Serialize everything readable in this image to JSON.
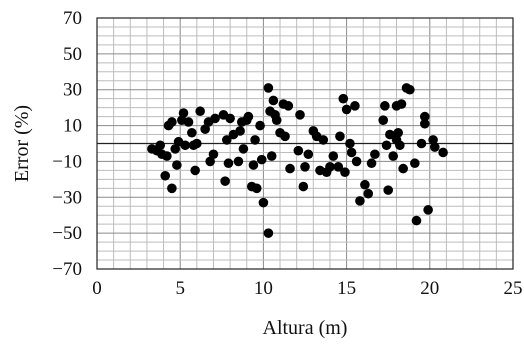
{
  "chart_data": {
    "type": "scatter",
    "xlabel": "Altura (m)",
    "ylabel": "Error (%)",
    "xlim": [
      0,
      25
    ],
    "ylim": [
      -70,
      70
    ],
    "xticks": [
      0,
      5,
      10,
      15,
      20,
      25
    ],
    "yticks": [
      -70,
      -50,
      -30,
      -10,
      10,
      30,
      50,
      70
    ],
    "grid": true,
    "reference_line_y": 0,
    "marker_color": "#000000",
    "series": [
      {
        "points": [
          [
            3.3,
            -3
          ],
          [
            3.6,
            -4
          ],
          [
            3.8,
            -1
          ],
          [
            3.9,
            -6
          ],
          [
            4.1,
            -18
          ],
          [
            4.2,
            -7
          ],
          [
            4.3,
            10
          ],
          [
            4.5,
            12
          ],
          [
            4.5,
            -25
          ],
          [
            4.7,
            -3
          ],
          [
            4.8,
            -12
          ],
          [
            4.9,
            1
          ],
          [
            5.1,
            13
          ],
          [
            5.2,
            17
          ],
          [
            5.3,
            -1
          ],
          [
            5.5,
            12
          ],
          [
            5.7,
            6
          ],
          [
            5.8,
            -1
          ],
          [
            5.9,
            -15
          ],
          [
            6.0,
            0
          ],
          [
            6.2,
            18
          ],
          [
            6.5,
            8
          ],
          [
            6.7,
            12
          ],
          [
            6.8,
            -10
          ],
          [
            7.0,
            -6
          ],
          [
            7.1,
            14
          ],
          [
            7.6,
            16
          ],
          [
            7.7,
            -21
          ],
          [
            7.8,
            2
          ],
          [
            7.9,
            -11
          ],
          [
            8.0,
            14
          ],
          [
            8.2,
            5
          ],
          [
            8.5,
            -10
          ],
          [
            8.6,
            7
          ],
          [
            8.7,
            12
          ],
          [
            8.8,
            -3
          ],
          [
            9.0,
            13
          ],
          [
            9.1,
            15
          ],
          [
            9.3,
            -24
          ],
          [
            9.4,
            -12
          ],
          [
            9.5,
            2
          ],
          [
            9.6,
            -25
          ],
          [
            9.8,
            10
          ],
          [
            9.9,
            -9
          ],
          [
            10.0,
            -33
          ],
          [
            10.3,
            31
          ],
          [
            10.3,
            -50
          ],
          [
            10.4,
            18
          ],
          [
            10.5,
            -7
          ],
          [
            10.6,
            24
          ],
          [
            10.7,
            16
          ],
          [
            10.8,
            13
          ],
          [
            11.0,
            6
          ],
          [
            11.2,
            22
          ],
          [
            11.3,
            4
          ],
          [
            11.5,
            21
          ],
          [
            11.6,
            -14
          ],
          [
            12.1,
            -4
          ],
          [
            12.2,
            16
          ],
          [
            12.4,
            -24
          ],
          [
            12.5,
            -13
          ],
          [
            12.7,
            -6
          ],
          [
            13.0,
            7
          ],
          [
            13.2,
            4
          ],
          [
            13.4,
            -15
          ],
          [
            13.6,
            2
          ],
          [
            13.8,
            -16
          ],
          [
            14.0,
            -13
          ],
          [
            14.2,
            -7
          ],
          [
            14.5,
            -13
          ],
          [
            14.6,
            4
          ],
          [
            14.8,
            25
          ],
          [
            14.9,
            -16
          ],
          [
            15.0,
            19
          ],
          [
            15.2,
            0
          ],
          [
            15.3,
            -5
          ],
          [
            15.5,
            21
          ],
          [
            15.6,
            -10
          ],
          [
            15.8,
            -32
          ],
          [
            16.1,
            -23
          ],
          [
            16.3,
            -28
          ],
          [
            16.5,
            -11
          ],
          [
            16.7,
            -6
          ],
          [
            17.2,
            13
          ],
          [
            17.3,
            21
          ],
          [
            17.4,
            -1
          ],
          [
            17.5,
            -26
          ],
          [
            17.6,
            5
          ],
          [
            17.8,
            -7
          ],
          [
            18.0,
            2
          ],
          [
            18.0,
            21
          ],
          [
            18.1,
            6
          ],
          [
            18.2,
            -1
          ],
          [
            18.3,
            22
          ],
          [
            18.4,
            -14
          ],
          [
            18.6,
            31
          ],
          [
            18.8,
            30
          ],
          [
            19.1,
            -11
          ],
          [
            19.2,
            -43
          ],
          [
            19.5,
            0
          ],
          [
            19.7,
            15
          ],
          [
            19.7,
            11
          ],
          [
            19.9,
            -37
          ],
          [
            20.2,
            2
          ],
          [
            20.3,
            -2
          ],
          [
            20.8,
            -5
          ]
        ]
      }
    ]
  }
}
